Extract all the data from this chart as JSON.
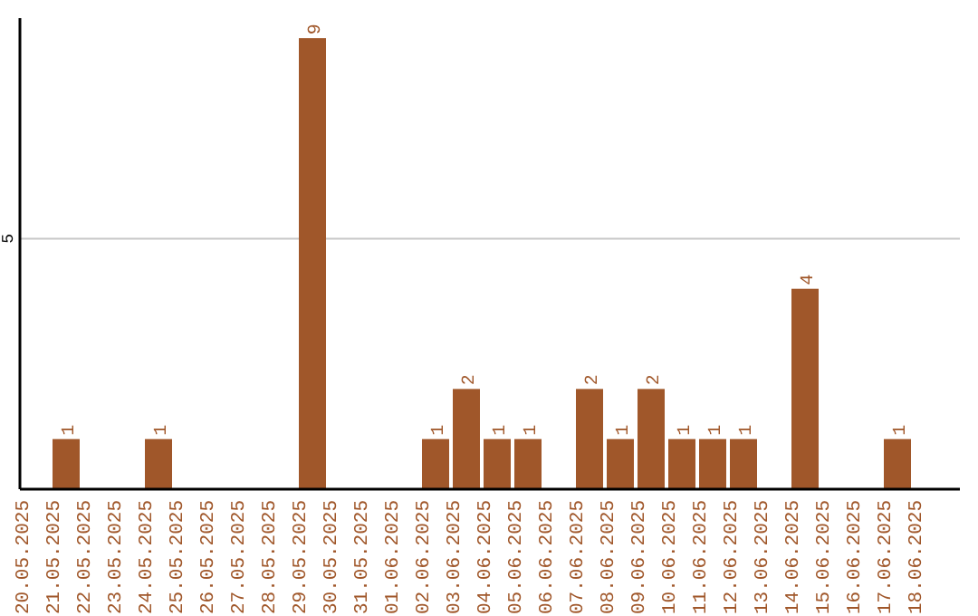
{
  "chart_data": {
    "type": "bar",
    "categories": [
      "20.05.2025",
      "21.05.2025",
      "22.05.2025",
      "23.05.2025",
      "24.05.2025",
      "25.05.2025",
      "26.05.2025",
      "27.05.2025",
      "28.05.2025",
      "29.05.2025",
      "30.05.2025",
      "31.05.2025",
      "01.06.2025",
      "02.06.2025",
      "03.06.2025",
      "04.06.2025",
      "05.06.2025",
      "06.06.2025",
      "07.06.2025",
      "08.06.2025",
      "09.06.2025",
      "10.06.2025",
      "11.06.2025",
      "12.06.2025",
      "13.06.2025",
      "14.06.2025",
      "15.06.2025",
      "16.06.2025",
      "17.06.2025",
      "18.06.2025"
    ],
    "values": [
      0,
      1,
      0,
      0,
      1,
      0,
      0,
      0,
      0,
      9,
      0,
      0,
      0,
      1,
      2,
      1,
      1,
      0,
      2,
      1,
      2,
      1,
      1,
      1,
      0,
      4,
      0,
      0,
      1,
      0
    ],
    "value_labels": [
      null,
      "1",
      null,
      null,
      "1",
      null,
      null,
      null,
      null,
      "9",
      null,
      null,
      null,
      "1",
      "2",
      "1",
      "1",
      null,
      "2",
      "1",
      "2",
      "1",
      "1",
      "1",
      null,
      "4",
      null,
      null,
      "1",
      null
    ],
    "color": "#a0572a",
    "ylim": [
      0,
      9.4
    ],
    "yticks": [
      5
    ],
    "grid": "y"
  }
}
